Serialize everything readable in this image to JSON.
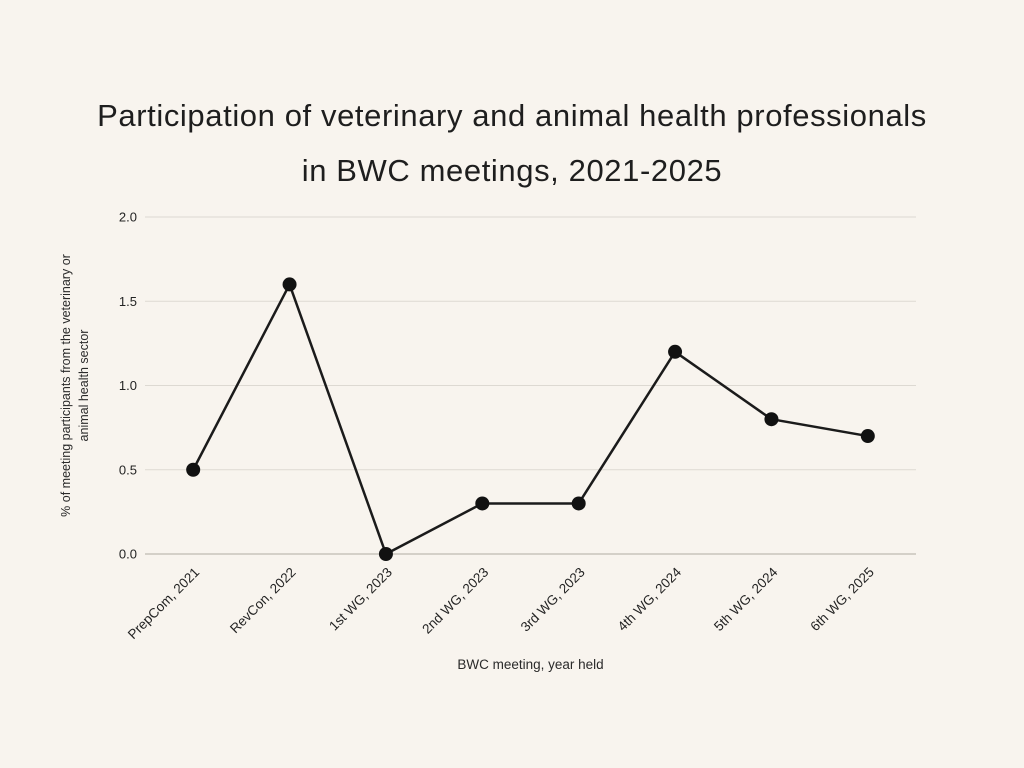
{
  "chart_data": {
    "type": "line",
    "title": "Participation of veterinary and animal health professionals in BWC meetings, 2021-2025",
    "categories": [
      "PrepCom, 2021",
      "RevCon, 2022",
      "1st WG, 2023",
      "2nd WG, 2023",
      "3rd WG, 2023",
      "4th WG, 2024",
      "5th WG, 2024",
      "6th WG, 2025"
    ],
    "values": [
      0.5,
      1.6,
      0.0,
      0.3,
      0.3,
      1.2,
      0.8,
      0.7
    ],
    "xlabel": "BWC meeting, year held",
    "ylabel": "% of meeting participants from the veterinary or animal health sector",
    "ylabel_lines": [
      "% of meeting participants from the veterinary or",
      "animal health sector"
    ],
    "y_ticks": [
      "0.0",
      "0.5",
      "1.0",
      "1.5",
      "2.0"
    ],
    "ylim": [
      0,
      2
    ],
    "grid": true,
    "legend": "none",
    "marker": "circle",
    "colors": {
      "background": "#f8f4ee",
      "line": "#1b1b1b",
      "marker": "#111111",
      "grid": "#ddd9d2",
      "baseline": "#c7c3bc",
      "tick_text": "#232323",
      "axis_title_text": "#2a2a2a",
      "title_text": "#1e1e1e"
    }
  }
}
